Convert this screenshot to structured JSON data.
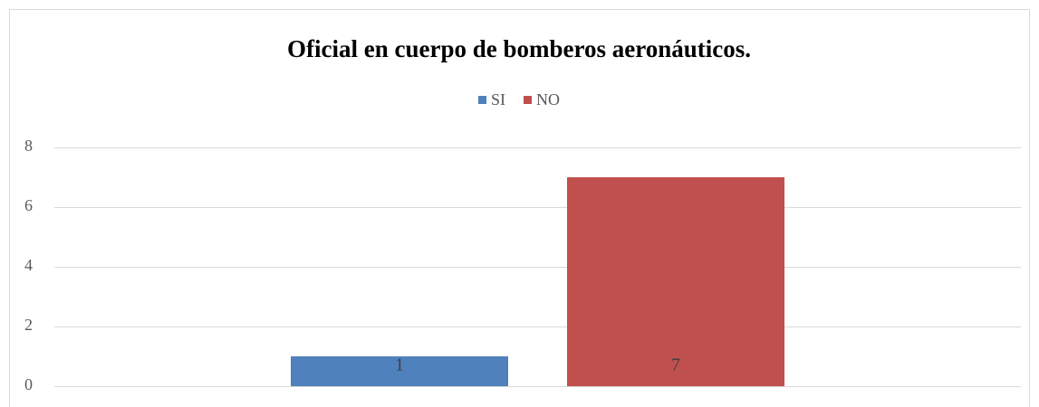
{
  "chart_data": {
    "type": "bar",
    "title": "Oficial en cuerpo de bomberos aeronáuticos.",
    "categories": [
      null
    ],
    "series": [
      {
        "name": "SI",
        "color": "#4f81bd",
        "values": [
          1
        ]
      },
      {
        "name": "NO",
        "color": "#c0504d",
        "values": [
          7
        ]
      }
    ],
    "ylim": [
      0,
      8
    ],
    "yticks": [
      0,
      2,
      4,
      6,
      8
    ],
    "grid": true,
    "legend": "top"
  }
}
